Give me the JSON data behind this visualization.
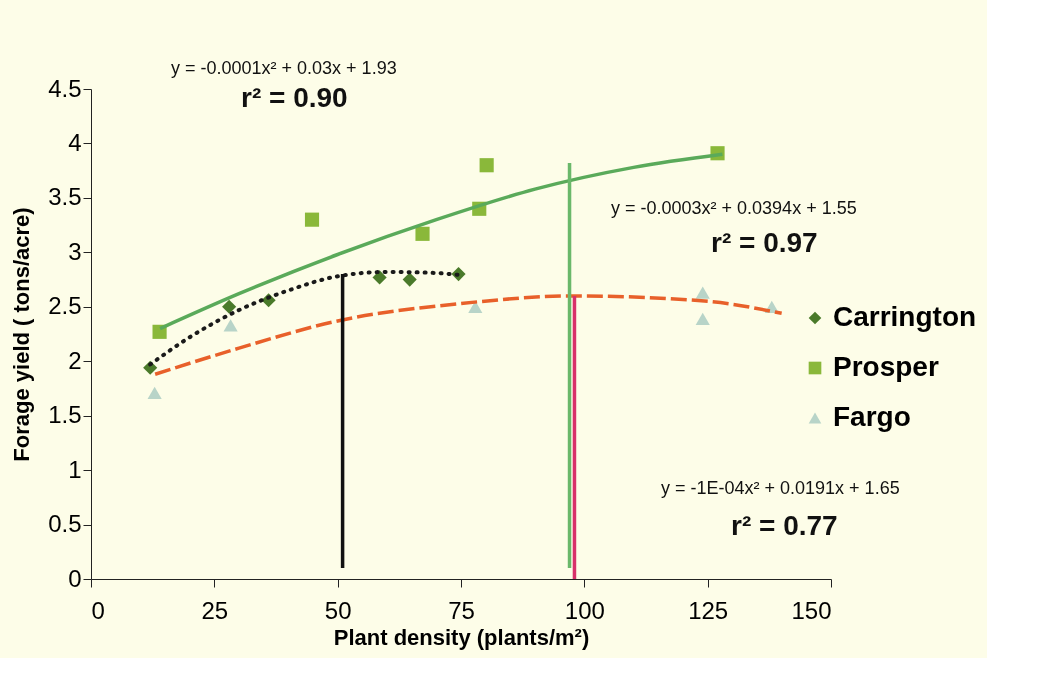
{
  "chart_data": {
    "type": "scatter",
    "xlabel": "Plant density (plants/m²)",
    "ylabel": "Forage yield ( tons/acre)",
    "xlim": [
      0,
      150
    ],
    "xticks": [
      0,
      25,
      50,
      75,
      100,
      125,
      150
    ],
    "ylim": [
      0,
      4.5
    ],
    "yticks": [
      0,
      0.5,
      1,
      1.5,
      2,
      2.5,
      3,
      3.5,
      4,
      4.5
    ],
    "grid": false,
    "legend": "right",
    "series": [
      {
        "name": "Carrington",
        "marker": "diamond",
        "color": "#4a7a2a",
        "x": [
          12,
          28,
          36,
          58.5,
          64.6,
          74.5
        ],
        "values": [
          1.94,
          2.5,
          2.56,
          2.77,
          2.75,
          2.8
        ]
      },
      {
        "name": "Prosper",
        "marker": "square",
        "color": "#8ab83a",
        "x": [
          13.9,
          44.8,
          67.2,
          78.7,
          80.2,
          127
        ],
        "values": [
          2.27,
          3.3,
          3.17,
          3.4,
          3.8,
          3.91
        ]
      },
      {
        "name": "Fargo",
        "marker": "triangle",
        "color": "#b8d4c8",
        "x": [
          12.9,
          28.3,
          77.9,
          124,
          124,
          138
        ],
        "values": [
          1.71,
          2.33,
          2.5,
          2.63,
          2.39,
          2.5
        ]
      },
      {
        "type": "line",
        "line_style": "dotted",
        "color": "#1a1a1a",
        "x": [
          12,
          20,
          30,
          40,
          50,
          60,
          70,
          75
        ],
        "values": [
          1.97,
          2.22,
          2.47,
          2.65,
          2.78,
          2.82,
          2.81,
          2.79
        ]
      },
      {
        "type": "line",
        "line_style": "solid",
        "color": "#5aaa5a",
        "x": [
          14,
          30,
          50,
          70,
          90,
          110,
          128
        ],
        "values": [
          2.3,
          2.62,
          2.98,
          3.3,
          3.58,
          3.78,
          3.9
        ]
      },
      {
        "type": "line",
        "line_style": "dashed",
        "color": "#e8602a",
        "x": [
          13,
          30,
          50,
          75,
          98,
          125,
          140
        ],
        "values": [
          1.88,
          2.12,
          2.37,
          2.53,
          2.6,
          2.55,
          2.44
        ]
      },
      {
        "type": "line",
        "line_style": "solid",
        "color": "#111111",
        "x": [
          51,
          51
        ],
        "values": [
          0.1,
          2.8
        ]
      },
      {
        "type": "line",
        "line_style": "solid",
        "color": "#6ab86a",
        "x": [
          97,
          97
        ],
        "values": [
          0.1,
          3.82
        ]
      },
      {
        "type": "line",
        "line_style": "solid",
        "color": "#d8306a",
        "x": [
          98,
          98
        ],
        "values": [
          0,
          2.6
        ]
      }
    ],
    "annotations": [
      "y = -0.0001x² + 0.03x + 1.93",
      "r² = 0.90",
      "y = -0.0003x² + 0.0394x + 1.55",
      "r² = 0.97",
      "y = -1E-04x² + 0.0191x + 1.65",
      "r² = 0.77"
    ]
  }
}
